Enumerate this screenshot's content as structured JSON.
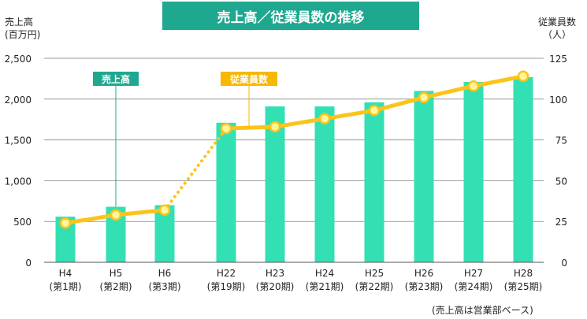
{
  "title": "売上高／従業員数の推移",
  "left_axis_title": [
    "売上高",
    "(百万円)"
  ],
  "right_axis_title": [
    "従業員数",
    "（人）"
  ],
  "note": "(売上高は営業部ベース)",
  "colors": {
    "bar": "#33e0b3",
    "line": "#fcc419",
    "point_fill": "#fff59d",
    "title_bg": "#1fa890",
    "label_bar_bg": "#1fa890",
    "label_line_bg": "#f6b800"
  },
  "chart_data": {
    "type": "bar",
    "categories": [
      [
        "H4",
        "(第1期)"
      ],
      [
        "H5",
        "(第2期)"
      ],
      [
        "H6",
        "(第3期)"
      ],
      [
        "H22",
        "(第19期)"
      ],
      [
        "H23",
        "(第20期)"
      ],
      [
        "H24",
        "(第21期)"
      ],
      [
        "H25",
        "(第22期)"
      ],
      [
        "H26",
        "(第23期)"
      ],
      [
        "H27",
        "(第24期)"
      ],
      [
        "H28",
        "(第25期)"
      ]
    ],
    "series": [
      {
        "name": "売上高",
        "type": "bar",
        "axis": "left",
        "values": [
          560,
          680,
          700,
          1710,
          1910,
          1910,
          1960,
          2100,
          2210,
          2270
        ]
      },
      {
        "name": "従業員数",
        "type": "line",
        "axis": "right",
        "values": [
          24,
          29,
          32,
          82,
          83,
          88,
          93,
          101,
          108,
          114
        ],
        "dotted_between": [
          2,
          3
        ]
      }
    ],
    "y_left": {
      "ticks": [
        "0",
        "500",
        "1,000",
        "1,500",
        "2,000",
        "2,500"
      ],
      "range": [
        0,
        2500
      ]
    },
    "y_right": {
      "ticks": [
        "0",
        "25",
        "50",
        "75",
        "100",
        "125"
      ],
      "range": [
        0,
        125
      ]
    },
    "grid": true,
    "callouts": [
      {
        "text": "売上高",
        "series": "売上高",
        "category_index": 1
      },
      {
        "text": "従業員数",
        "series": "従業員数",
        "category_index": 3
      }
    ]
  }
}
